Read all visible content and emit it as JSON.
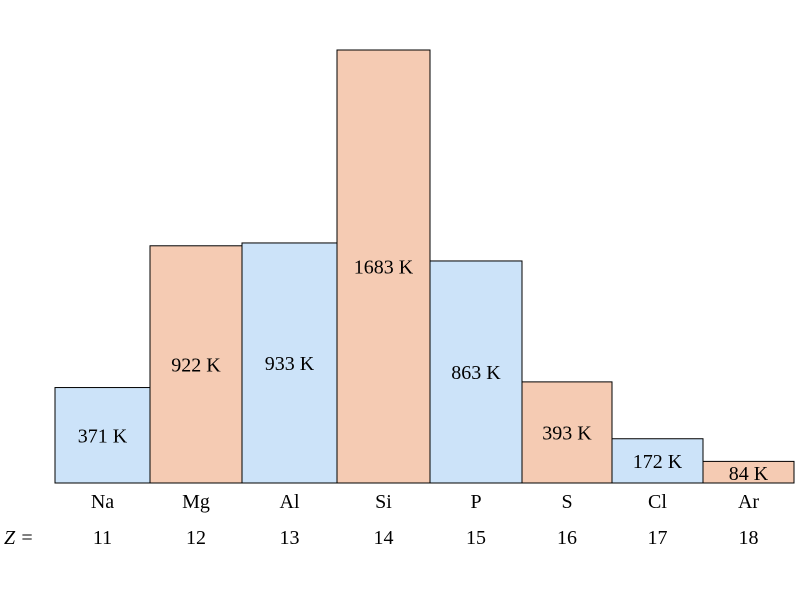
{
  "chart_data": {
    "type": "bar",
    "categories": [
      "Na",
      "Mg",
      "Al",
      "Si",
      "P",
      "S",
      "Cl",
      "Ar"
    ],
    "atomic_numbers": [
      "11",
      "12",
      "13",
      "14",
      "15",
      "16",
      "17",
      "18"
    ],
    "values": [
      371,
      922,
      933,
      1683,
      863,
      393,
      172,
      84
    ],
    "unit": "K",
    "value_labels": [
      "371 K",
      "922 K",
      "933 K",
      "1683 K",
      "863 K",
      "393 K",
      "172 K",
      "84 K"
    ],
    "row_label": "Z =",
    "ylim": [
      0,
      1683
    ],
    "grid": false,
    "legend": "none",
    "colors": {
      "blue": "#cce3f9",
      "orange": "#f5cbb3",
      "outline": "#000000"
    },
    "bar_colors": [
      "blue",
      "orange",
      "blue",
      "orange",
      "blue",
      "orange",
      "blue",
      "orange"
    ]
  }
}
